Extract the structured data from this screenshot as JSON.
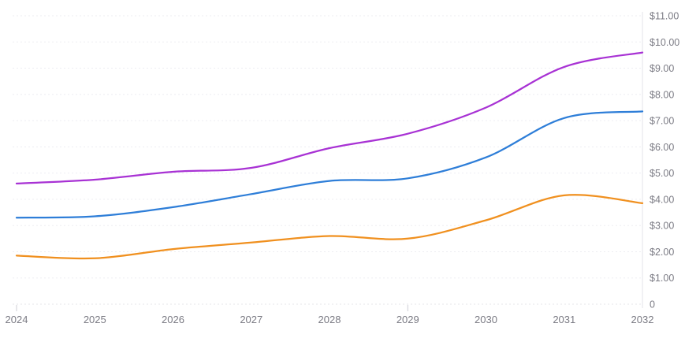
{
  "chart_data": {
    "type": "line",
    "title": "",
    "xlabel": "",
    "ylabel": "",
    "x": [
      2024,
      2025,
      2026,
      2027,
      2028,
      2029,
      2030,
      2031,
      2032
    ],
    "x_labels": [
      "2024",
      "2025",
      "2026",
      "2027",
      "2028",
      "2029",
      "2030",
      "2031",
      "2032"
    ],
    "series": [
      {
        "name": "purple-series",
        "color": "#a832d4",
        "values": [
          4.6,
          4.75,
          5.05,
          5.2,
          5.95,
          6.5,
          7.5,
          9.05,
          9.6
        ]
      },
      {
        "name": "blue-series",
        "color": "#2e7ed8",
        "values": [
          3.3,
          3.35,
          3.7,
          4.2,
          4.7,
          4.8,
          5.6,
          7.1,
          7.35
        ]
      },
      {
        "name": "orange-series",
        "color": "#f0901f",
        "values": [
          1.85,
          1.75,
          2.1,
          2.35,
          2.6,
          2.5,
          3.2,
          4.15,
          3.85
        ]
      }
    ],
    "ylim": [
      0,
      11
    ],
    "ytick_labels_top_to_bottom": [
      "$11.00",
      "$10.00",
      "$9.00",
      "$8.00",
      "$7.00",
      "$6.00",
      "$5.00",
      "$4.00",
      "$3.00",
      "$2.00",
      "$1.00",
      "0"
    ],
    "y_axis_side": "right",
    "legend_position": "none",
    "grid": "horizontal-dashed",
    "x_ticks_marked": [
      2024,
      2029
    ],
    "style": {
      "background": "#ffffff",
      "grid_color": "#ededf2",
      "baseline_grid_color": "#e4e4ea",
      "axis_line_color": "#e3e3e9",
      "tick_mark_color": "#cfcfd6",
      "label_color": "#7b7b84"
    }
  }
}
